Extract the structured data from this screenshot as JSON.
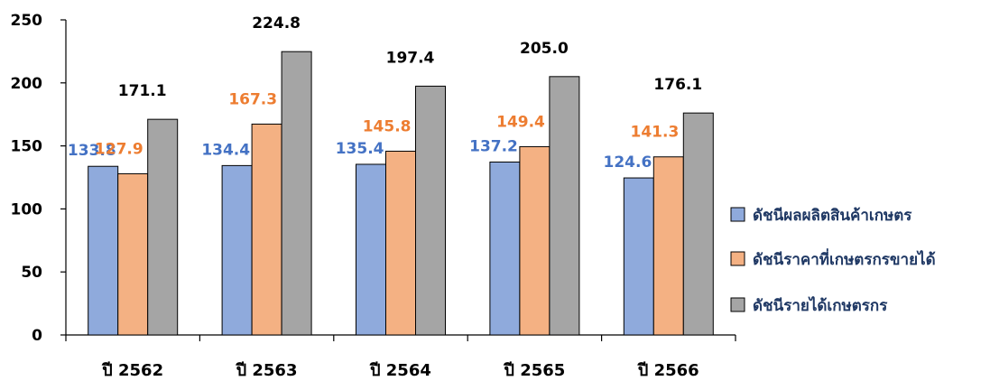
{
  "chart_data": {
    "type": "bar",
    "categories": [
      "ปี 2562",
      "ปี 2563",
      "ปี 2564",
      "ปี 2565",
      "ปี 2566"
    ],
    "series": [
      {
        "name": "ดัชนีผลผลิตสินค้าเกษตร",
        "values": [
          133.8,
          134.4,
          135.4,
          137.2,
          124.6
        ],
        "color": "#8faadc",
        "label_color": "#4472c4"
      },
      {
        "name": "ดัชนีราคาที่เกษตรกรขายได้",
        "values": [
          127.9,
          167.3,
          145.8,
          149.4,
          141.3
        ],
        "color": "#f4b183",
        "label_color": "#ed7d31"
      },
      {
        "name": "ดัชนีรายได้เกษตรกร",
        "values": [
          171.1,
          224.8,
          197.4,
          205.0,
          176.1
        ],
        "color": "#a5a5a5",
        "label_color": "#000000"
      }
    ],
    "data_labels": [
      [
        "133.8",
        "134.4",
        "135.4",
        "137.2",
        "124.6"
      ],
      [
        "127.9",
        "167.3",
        "145.8",
        "149.4",
        "141.3"
      ],
      [
        "171.1",
        "224.8",
        "197.4",
        "205.0",
        "176.1"
      ]
    ],
    "y_ticks": [
      "0",
      "50",
      "100",
      "150",
      "200",
      "250"
    ],
    "ylim": [
      0,
      250
    ],
    "grid": false,
    "legend_position": "right"
  }
}
